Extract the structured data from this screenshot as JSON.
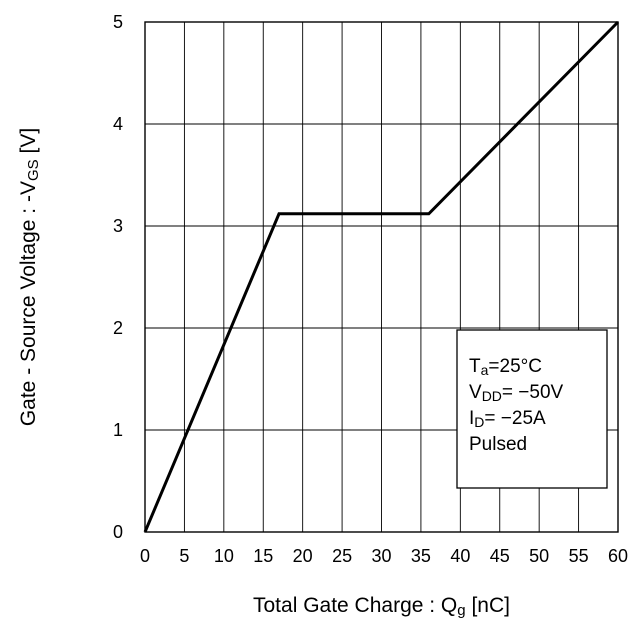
{
  "chart_data": {
    "type": "line",
    "xlabel": {
      "main": "Total Gate Charge : Q",
      "sub": "g",
      "unit": " [nC]"
    },
    "ylabel": {
      "main": "Gate - Source Voltage : -V",
      "sub": "GS",
      "unit": " [V]"
    },
    "xlim": [
      0,
      60
    ],
    "ylim": [
      0,
      5
    ],
    "xticks": [
      0,
      5,
      10,
      15,
      20,
      25,
      30,
      35,
      40,
      45,
      50,
      55,
      60
    ],
    "yticks": [
      0,
      1,
      2,
      3,
      4,
      5
    ],
    "grid": true,
    "series": [
      {
        "x": [
          0,
          17,
          36,
          60
        ],
        "y": [
          0,
          3.12,
          3.12,
          5.0
        ]
      }
    ],
    "legend": {
      "placement": "lower-right",
      "lines": [
        {
          "main": "T",
          "sub": "a",
          "rest": "=25°C"
        },
        {
          "main": "V",
          "sub": "DD",
          "rest": "= −50V"
        },
        {
          "main": "I",
          "sub": "D",
          "rest": "= −25A"
        },
        {
          "main": "Pulsed",
          "sub": "",
          "rest": ""
        }
      ]
    }
  }
}
